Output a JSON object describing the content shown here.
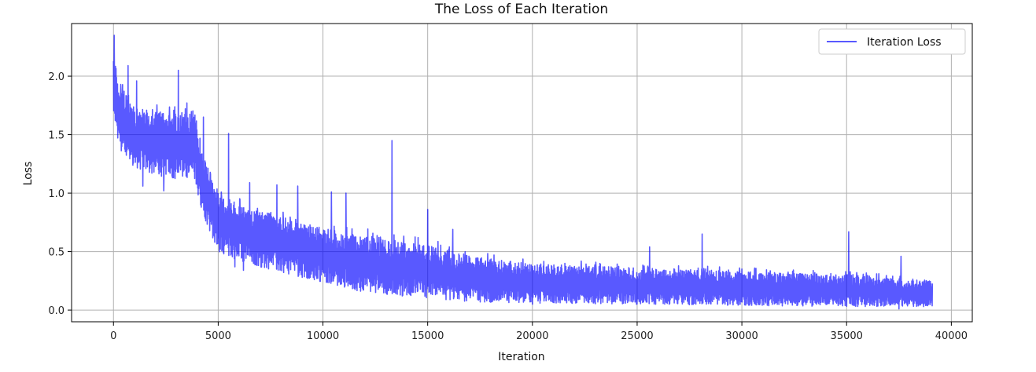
{
  "chart_data": {
    "type": "line",
    "title": "The Loss of Each Iteration",
    "xlabel": "Iteration",
    "ylabel": "Loss",
    "xlim": [
      -2000,
      41000
    ],
    "ylim": [
      -0.1,
      2.45
    ],
    "xticks": [
      0,
      5000,
      10000,
      15000,
      20000,
      25000,
      30000,
      35000,
      40000
    ],
    "yticks": [
      0.0,
      0.5,
      1.0,
      1.5,
      2.0
    ],
    "xtick_labels": [
      "0",
      "5000",
      "10000",
      "15000",
      "20000",
      "25000",
      "30000",
      "35000",
      "40000"
    ],
    "ytick_labels": [
      "0.0",
      "0.5",
      "1.0",
      "1.5",
      "2.0"
    ],
    "grid": true,
    "legend_position": "top-right",
    "series": [
      {
        "name": "Iteration Loss",
        "color": "#0000ff",
        "opacity": 0.65,
        "x_max": 39100,
        "envelope_x": [
          0,
          200,
          1000,
          2000,
          3000,
          3900,
          4200,
          5000,
          6000,
          8000,
          10000,
          12000,
          15000,
          17000,
          20000,
          25000,
          30000,
          35000,
          39100
        ],
        "envelope_low": [
          1.55,
          1.4,
          1.22,
          1.15,
          1.12,
          1.1,
          0.85,
          0.5,
          0.42,
          0.32,
          0.24,
          0.15,
          0.1,
          0.07,
          0.06,
          0.05,
          0.04,
          0.03,
          0.03
        ],
        "envelope_high": [
          2.3,
          1.95,
          1.75,
          1.7,
          1.68,
          1.72,
          1.35,
          1.02,
          0.9,
          0.8,
          0.7,
          0.64,
          0.56,
          0.46,
          0.4,
          0.36,
          0.33,
          0.3,
          0.25
        ],
        "spikes": [
          [
            30,
            2.35
          ],
          [
            700,
            2.09
          ],
          [
            1100,
            1.96
          ],
          [
            3100,
            2.05
          ],
          [
            4300,
            1.65
          ],
          [
            5500,
            1.51
          ],
          [
            6500,
            1.09
          ],
          [
            7800,
            1.07
          ],
          [
            8800,
            1.06
          ],
          [
            10400,
            1.01
          ],
          [
            11100,
            1.0
          ],
          [
            13300,
            1.45
          ],
          [
            15000,
            0.86
          ],
          [
            16200,
            0.69
          ],
          [
            25600,
            0.54
          ],
          [
            28100,
            0.65
          ],
          [
            35100,
            0.67
          ],
          [
            37600,
            0.46
          ]
        ],
        "dips": [
          [
            1400,
            1.06
          ],
          [
            2400,
            1.02
          ],
          [
            5800,
            0.37
          ],
          [
            6200,
            0.34
          ],
          [
            9400,
            0.28
          ],
          [
            13200,
            0.19
          ],
          [
            20000,
            0.05
          ],
          [
            37500,
            0.01
          ]
        ]
      }
    ]
  }
}
